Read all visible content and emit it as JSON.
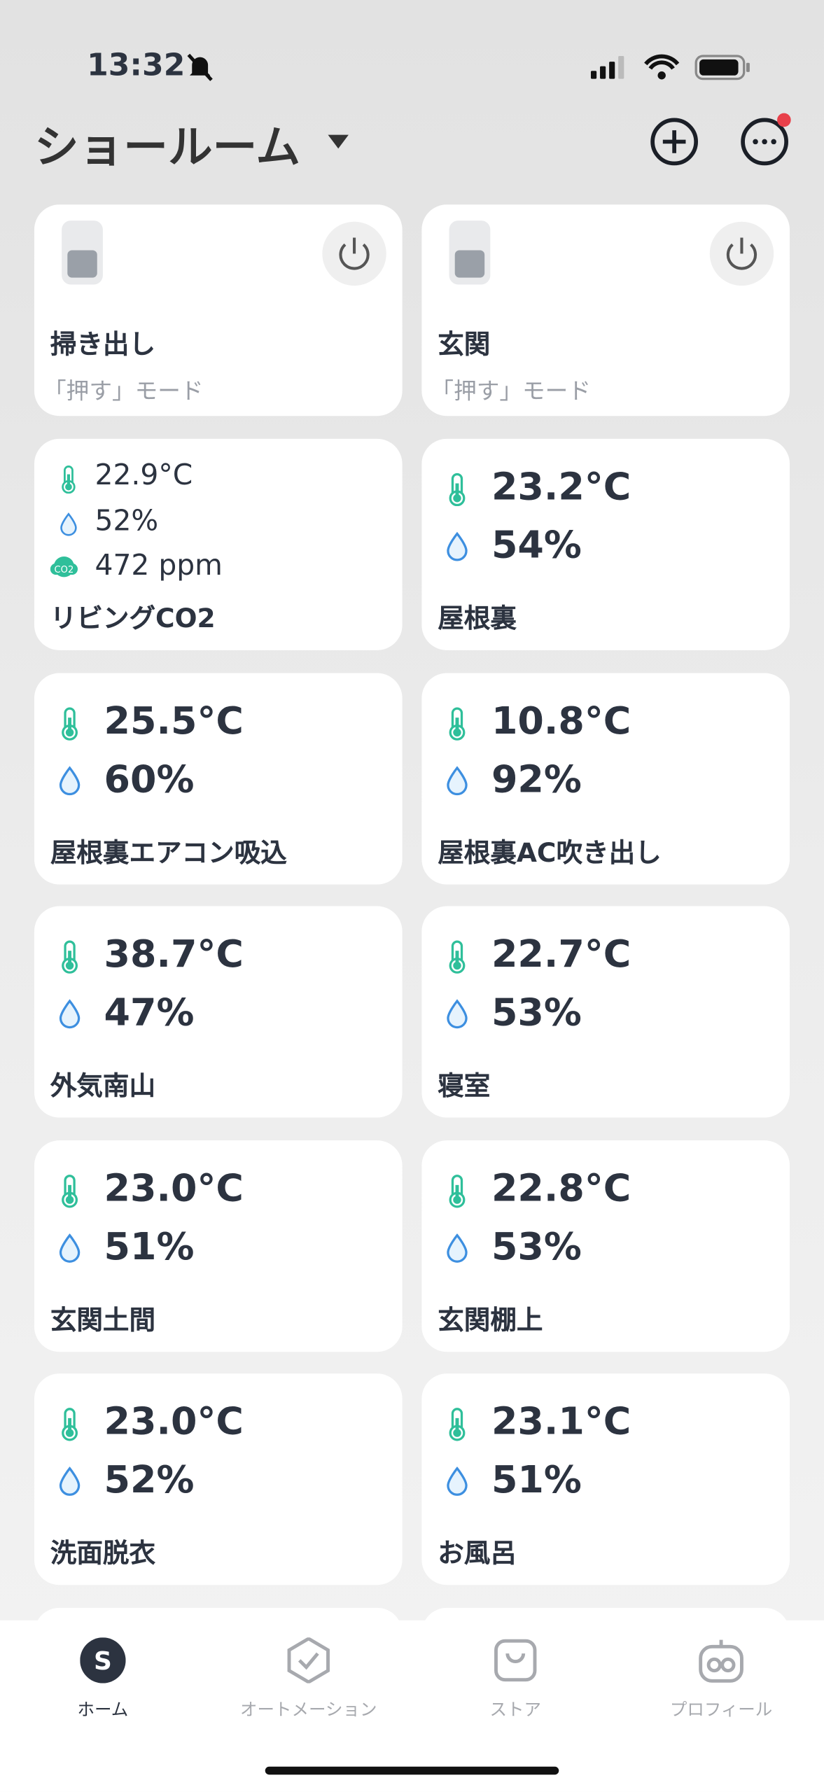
{
  "status_bar": {
    "time": "13:32"
  },
  "header": {
    "title": "ショールーム"
  },
  "switch_cards": [
    {
      "name": "掃き出し",
      "mode": "「押す」モード"
    },
    {
      "name": "玄関",
      "mode": "「押す」モード"
    }
  ],
  "sensor_cards": [
    {
      "temperature": "22.9°C",
      "humidity": "52%",
      "co2": "472 ppm",
      "name": "リビングCO2"
    },
    {
      "temperature": "23.2°C",
      "humidity": "54%",
      "name": "屋根裏"
    },
    {
      "temperature": "25.5°C",
      "humidity": "60%",
      "name": "屋根裏エアコン吸込"
    },
    {
      "temperature": "10.8°C",
      "humidity": "92%",
      "name": "屋根裏AC吹き出し"
    },
    {
      "temperature": "38.7°C",
      "humidity": "47%",
      "name": "外気南山"
    },
    {
      "temperature": "22.7°C",
      "humidity": "53%",
      "name": "寝室"
    },
    {
      "temperature": "23.0°C",
      "humidity": "51%",
      "name": "玄関土間"
    },
    {
      "temperature": "22.8°C",
      "humidity": "53%",
      "name": "玄関棚上"
    },
    {
      "temperature": "23.0°C",
      "humidity": "52%",
      "name": "洗面脱衣"
    },
    {
      "temperature": "23.1°C",
      "humidity": "51%",
      "name": "お風呂"
    }
  ],
  "tab_bar": {
    "tabs": [
      "ホーム",
      "オートメーション",
      "ストア",
      "プロフィール"
    ]
  }
}
